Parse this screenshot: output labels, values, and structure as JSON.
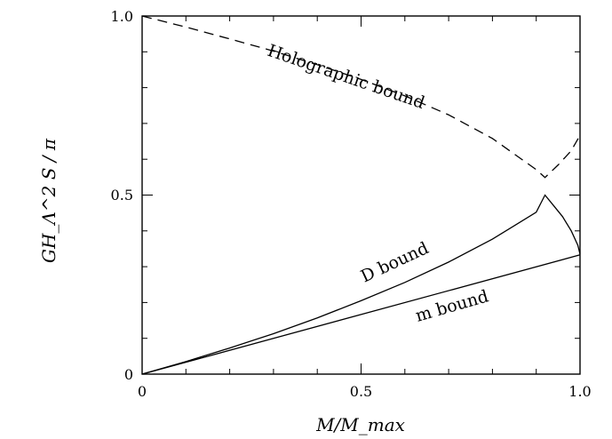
{
  "chart_data": {
    "type": "line",
    "xlabel": "M/M_max",
    "ylabel": "GH_Λ^2 S / π",
    "xlim": [
      0,
      1
    ],
    "ylim": [
      0,
      1
    ],
    "xticks": [
      "0",
      "0.5",
      "1.0"
    ],
    "yticks": [
      "0",
      "0.5",
      "1.0"
    ],
    "grid": false,
    "series": [
      {
        "name": "Holographic bound",
        "style": "dashed",
        "x": [
          0,
          0.1,
          0.2,
          0.3,
          0.4,
          0.5,
          0.6,
          0.7,
          0.8,
          0.9,
          0.92,
          0.95,
          0.98,
          1.0
        ],
        "y": [
          1.0,
          0.969,
          0.936,
          0.902,
          0.864,
          0.823,
          0.777,
          0.724,
          0.658,
          0.571,
          0.549,
          0.584,
          0.624,
          0.667
        ]
      },
      {
        "name": "D bound",
        "style": "solid",
        "x": [
          0,
          0.1,
          0.2,
          0.3,
          0.4,
          0.5,
          0.6,
          0.7,
          0.8,
          0.9,
          0.92,
          0.94,
          0.96,
          0.98,
          0.995,
          1.0
        ],
        "y": [
          0,
          0.035,
          0.073,
          0.113,
          0.157,
          0.205,
          0.256,
          0.313,
          0.377,
          0.452,
          0.5,
          0.47,
          0.44,
          0.4,
          0.36,
          0.335
        ]
      },
      {
        "name": "m bound",
        "style": "solid",
        "x": [
          0,
          1.0
        ],
        "y": [
          0,
          0.333
        ]
      }
    ],
    "annotations": [
      "Holographic bound",
      "D bound",
      "m bound"
    ]
  }
}
